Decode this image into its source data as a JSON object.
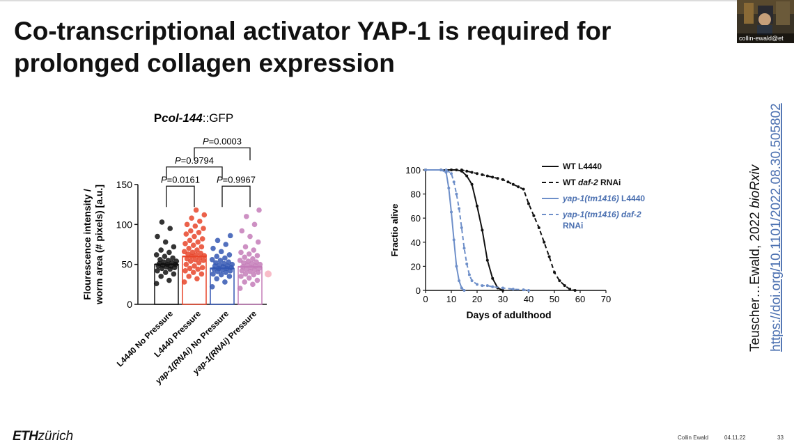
{
  "slide": {
    "title": "Co-transcriptional activator YAP-1 is required for prolonged collagen expression",
    "presenter_label": "collin-ewald@et",
    "citation": {
      "authors_text": "Teuscher…Ewald, 2022",
      "journal": "bioRxiv",
      "doi_url": "https://doi.org/10.1101/2022.08.30.505802"
    },
    "footer": {
      "logo_eth": "ETH",
      "logo_city": "zürich",
      "presenter": "Collin Ewald",
      "date": "04.11.22",
      "page": "33"
    }
  },
  "chart_data": [
    {
      "type": "bar",
      "title_prefix": "P",
      "title_italic": "col-144",
      "title_suffix": "::GFP",
      "ylabel_line1": "Flourescence intensity /",
      "ylabel_line2": "worm area (# pixels) [a.u.]",
      "ylim": [
        0,
        150
      ],
      "yticks": [
        "0",
        "50",
        "100",
        "150"
      ],
      "categories": [
        {
          "label": "L4440 No Pressure",
          "italic_part": "",
          "rest": "L4440 No Pressure"
        },
        {
          "label": "L4440 Pressure",
          "italic_part": "",
          "rest": "L4440 Pressure"
        },
        {
          "label": "yap-1(RNAi) No Pressure",
          "italic_part": "yap-1(RNAi)",
          "rest": " No Pressure"
        },
        {
          "label": "yap-1(RNAi) Pressure",
          "italic_part": "yap-1(RNAi)",
          "rest": " Pressure"
        }
      ],
      "means": [
        50,
        60,
        45,
        47
      ],
      "colors": [
        "#111111",
        "#e8452a",
        "#3457b3",
        "#c47cb8"
      ],
      "points": [
        [
          26,
          30,
          35,
          38,
          40,
          42,
          44,
          45,
          46,
          47,
          48,
          48,
          49,
          50,
          50,
          51,
          52,
          53,
          54,
          55,
          56,
          58,
          60,
          62,
          65,
          68,
          72,
          78,
          85,
          95,
          103
        ],
        [
          28,
          32,
          35,
          38,
          40,
          42,
          44,
          45,
          46,
          48,
          50,
          52,
          54,
          55,
          56,
          57,
          58,
          60,
          61,
          62,
          63,
          64,
          65,
          66,
          68,
          70,
          72,
          74,
          76,
          78,
          80,
          82,
          85,
          88,
          90,
          92,
          95,
          98,
          100,
          104,
          108,
          112,
          118
        ],
        [
          22,
          28,
          32,
          35,
          37,
          38,
          40,
          41,
          42,
          43,
          44,
          45,
          45,
          46,
          47,
          48,
          48,
          49,
          50,
          51,
          52,
          53,
          55,
          56,
          58,
          60,
          62,
          66,
          70,
          75,
          80,
          86
        ],
        [
          20,
          25,
          28,
          30,
          33,
          35,
          37,
          38,
          40,
          41,
          42,
          43,
          44,
          45,
          46,
          47,
          48,
          49,
          50,
          51,
          52,
          53,
          54,
          55,
          57,
          59,
          61,
          63,
          65,
          68,
          72,
          78,
          85,
          92,
          100,
          110,
          118
        ]
      ],
      "comparisons": [
        {
          "from": 0,
          "to": 1,
          "label": "P=0.0161"
        },
        {
          "from": 2,
          "to": 3,
          "label": "P=0.9967"
        },
        {
          "from": 0,
          "to": 2,
          "label": "P=0.9794"
        },
        {
          "from": 1,
          "to": 3,
          "label": "P=0.0003"
        }
      ]
    },
    {
      "type": "line",
      "xlabel": "Days of adulthood",
      "ylabel": "Fractio alive",
      "xlim": [
        0,
        70
      ],
      "ylim": [
        0,
        100
      ],
      "xticks": [
        "0",
        "10",
        "20",
        "30",
        "40",
        "50",
        "60",
        "70"
      ],
      "yticks": [
        "0",
        "20",
        "40",
        "60",
        "80",
        "100"
      ],
      "series": [
        {
          "name_plain": "WT L4440",
          "name_italic": "",
          "name_rest": "",
          "color": "#111111",
          "dash": false,
          "x": [
            0,
            6,
            10,
            12,
            14,
            16,
            18,
            20,
            22,
            24,
            26,
            28,
            30
          ],
          "y": [
            100,
            100,
            100,
            100,
            99,
            95,
            88,
            70,
            50,
            25,
            10,
            2,
            0
          ]
        },
        {
          "name_plain": "WT ",
          "name_italic": "daf-2",
          "name_rest": " RNAi",
          "color": "#111111",
          "dash": true,
          "x": [
            0,
            10,
            14,
            16,
            18,
            20,
            22,
            24,
            26,
            28,
            30,
            32,
            34,
            36,
            38,
            40,
            42,
            44,
            46,
            48,
            50,
            52,
            54,
            56,
            58
          ],
          "y": [
            100,
            100,
            100,
            99,
            98,
            97,
            96,
            95,
            94,
            93,
            92,
            90,
            88,
            86,
            84,
            72,
            62,
            52,
            40,
            28,
            15,
            8,
            4,
            1,
            0
          ]
        },
        {
          "name_plain": "",
          "name_italic": "yap-1(tm1416)",
          "name_rest": " L4440",
          "color": "#6e8fc9",
          "dash": false,
          "x": [
            0,
            6,
            8,
            9,
            10,
            11,
            12,
            13,
            14,
            15
          ],
          "y": [
            100,
            100,
            98,
            85,
            65,
            42,
            20,
            8,
            2,
            0
          ]
        },
        {
          "name_plain": "",
          "name_italic": "yap-1(tm1416) daf-2",
          "name_rest": "RNAi",
          "color": "#6e8fc9",
          "dash": true,
          "x": [
            0,
            8,
            10,
            11,
            12,
            13,
            14,
            15,
            16,
            17,
            18,
            20,
            22,
            24,
            26,
            30,
            34,
            38,
            40
          ],
          "y": [
            100,
            100,
            97,
            90,
            80,
            68,
            52,
            35,
            22,
            13,
            8,
            5,
            4,
            4,
            3,
            2,
            1,
            0.5,
            0
          ]
        }
      ]
    }
  ]
}
